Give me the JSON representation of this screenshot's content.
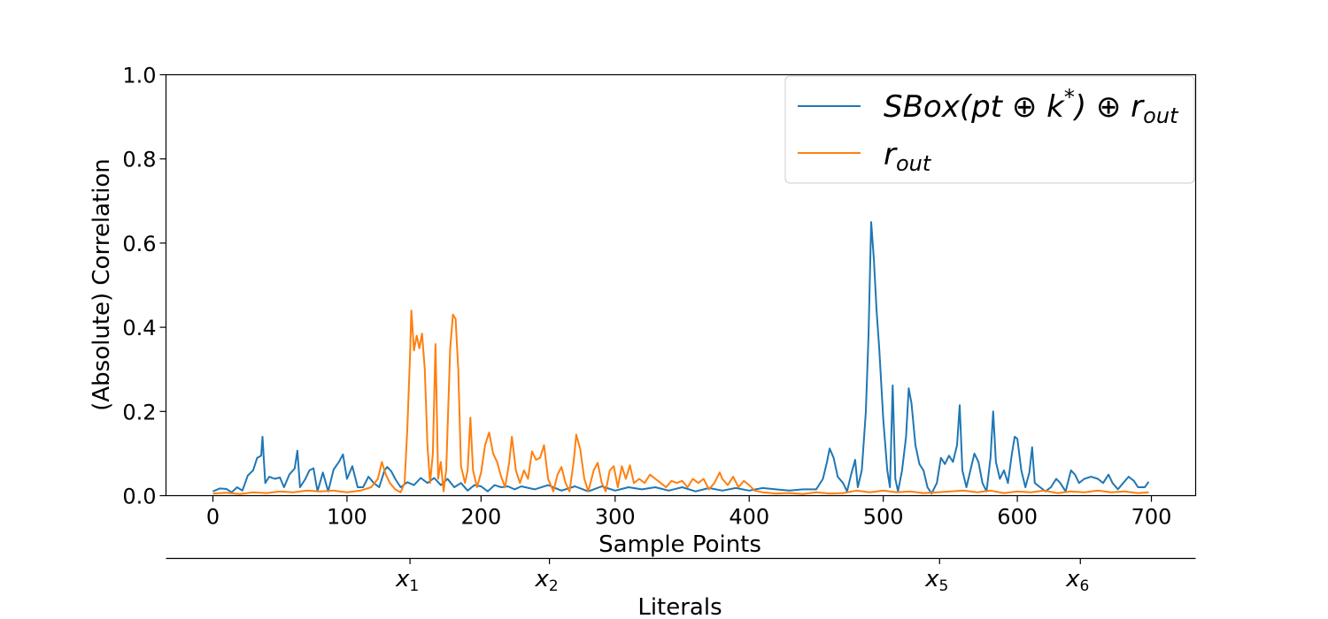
{
  "chart_data": {
    "type": "line",
    "xlabel": "Sample Points",
    "ylabel": "(Absolute) Correlation",
    "xlim": [
      -35,
      733
    ],
    "ylim": [
      0.0,
      1.0
    ],
    "xticks": [
      0,
      100,
      200,
      300,
      400,
      500,
      600,
      700
    ],
    "yticks": [
      0.0,
      0.2,
      0.4,
      0.6,
      0.8,
      1.0
    ],
    "ytick_labels": [
      "0.0",
      "0.2",
      "0.4",
      "0.6",
      "0.8",
      "1.0"
    ],
    "legend_position": "top-right",
    "secondary_axis": {
      "label": "Literals",
      "ticks": [
        {
          "at": 147,
          "base": "x",
          "sub": "1"
        },
        {
          "at": 251,
          "base": "x",
          "sub": "2"
        },
        {
          "at": 542,
          "base": "x",
          "sub": "5"
        },
        {
          "at": 647,
          "base": "x",
          "sub": "6"
        }
      ]
    },
    "series": [
      {
        "name": "SBox(pt ⊕ k*) ⊕ r_out",
        "legend_main": "SBox(pt ⊕ k",
        "legend_sup": "*",
        "legend_mid": ") ⊕ r",
        "legend_sub": "out",
        "color": "#1f77b4",
        "points": [
          [
            0,
            0.01
          ],
          [
            5,
            0.017
          ],
          [
            10,
            0.016
          ],
          [
            14,
            0.008
          ],
          [
            18,
            0.02
          ],
          [
            22,
            0.012
          ],
          [
            26,
            0.048
          ],
          [
            30,
            0.06
          ],
          [
            33,
            0.09
          ],
          [
            36,
            0.095
          ],
          [
            37,
            0.14
          ],
          [
            39,
            0.03
          ],
          [
            42,
            0.045
          ],
          [
            46,
            0.04
          ],
          [
            50,
            0.043
          ],
          [
            53,
            0.02
          ],
          [
            57,
            0.05
          ],
          [
            61,
            0.065
          ],
          [
            63,
            0.107
          ],
          [
            65,
            0.02
          ],
          [
            69,
            0.04
          ],
          [
            72,
            0.06
          ],
          [
            75,
            0.065
          ],
          [
            78,
            0.01
          ],
          [
            82,
            0.055
          ],
          [
            86,
            0.01
          ],
          [
            90,
            0.062
          ],
          [
            94,
            0.08
          ],
          [
            97,
            0.098
          ],
          [
            100,
            0.04
          ],
          [
            104,
            0.07
          ],
          [
            108,
            0.02
          ],
          [
            112,
            0.02
          ],
          [
            116,
            0.045
          ],
          [
            120,
            0.03
          ],
          [
            124,
            0.02
          ],
          [
            128,
            0.06
          ],
          [
            130,
            0.068
          ],
          [
            133,
            0.058
          ],
          [
            136,
            0.04
          ],
          [
            140,
            0.02
          ],
          [
            145,
            0.032
          ],
          [
            150,
            0.025
          ],
          [
            155,
            0.042
          ],
          [
            160,
            0.03
          ],
          [
            165,
            0.042
          ],
          [
            170,
            0.025
          ],
          [
            175,
            0.04
          ],
          [
            180,
            0.02
          ],
          [
            185,
            0.03
          ],
          [
            190,
            0.012
          ],
          [
            195,
            0.025
          ],
          [
            200,
            0.022
          ],
          [
            205,
            0.01
          ],
          [
            210,
            0.025
          ],
          [
            215,
            0.02
          ],
          [
            220,
            0.022
          ],
          [
            225,
            0.015
          ],
          [
            230,
            0.022
          ],
          [
            240,
            0.015
          ],
          [
            250,
            0.025
          ],
          [
            260,
            0.012
          ],
          [
            270,
            0.022
          ],
          [
            280,
            0.01
          ],
          [
            290,
            0.022
          ],
          [
            300,
            0.012
          ],
          [
            310,
            0.02
          ],
          [
            320,
            0.015
          ],
          [
            330,
            0.02
          ],
          [
            340,
            0.012
          ],
          [
            350,
            0.02
          ],
          [
            360,
            0.01
          ],
          [
            370,
            0.018
          ],
          [
            380,
            0.012
          ],
          [
            390,
            0.018
          ],
          [
            400,
            0.012
          ],
          [
            410,
            0.018
          ],
          [
            420,
            0.015
          ],
          [
            430,
            0.012
          ],
          [
            440,
            0.015
          ],
          [
            450,
            0.015
          ],
          [
            455,
            0.04
          ],
          [
            458,
            0.08
          ],
          [
            460,
            0.112
          ],
          [
            463,
            0.09
          ],
          [
            466,
            0.045
          ],
          [
            470,
            0.03
          ],
          [
            473,
            0.01
          ],
          [
            476,
            0.05
          ],
          [
            479,
            0.085
          ],
          [
            481,
            0.02
          ],
          [
            484,
            0.06
          ],
          [
            487,
            0.2
          ],
          [
            489,
            0.38
          ],
          [
            491,
            0.65
          ],
          [
            493,
            0.56
          ],
          [
            495,
            0.44
          ],
          [
            497,
            0.35
          ],
          [
            500,
            0.18
          ],
          [
            503,
            0.06
          ],
          [
            505,
            0.02
          ],
          [
            507,
            0.262
          ],
          [
            509,
            0.04
          ],
          [
            511,
            0.01
          ],
          [
            514,
            0.06
          ],
          [
            517,
            0.14
          ],
          [
            519,
            0.255
          ],
          [
            521,
            0.22
          ],
          [
            524,
            0.12
          ],
          [
            527,
            0.075
          ],
          [
            530,
            0.06
          ],
          [
            533,
            0.02
          ],
          [
            536,
            0.005
          ],
          [
            540,
            0.03
          ],
          [
            543,
            0.09
          ],
          [
            546,
            0.075
          ],
          [
            549,
            0.095
          ],
          [
            552,
            0.08
          ],
          [
            555,
            0.12
          ],
          [
            557,
            0.215
          ],
          [
            559,
            0.06
          ],
          [
            562,
            0.02
          ],
          [
            565,
            0.06
          ],
          [
            568,
            0.1
          ],
          [
            571,
            0.08
          ],
          [
            574,
            0.03
          ],
          [
            577,
            0.01
          ],
          [
            580,
            0.09
          ],
          [
            582,
            0.2
          ],
          [
            584,
            0.08
          ],
          [
            587,
            0.04
          ],
          [
            590,
            0.06
          ],
          [
            593,
            0.03
          ],
          [
            596,
            0.1
          ],
          [
            598,
            0.14
          ],
          [
            600,
            0.135
          ],
          [
            603,
            0.06
          ],
          [
            606,
            0.02
          ],
          [
            609,
            0.055
          ],
          [
            611,
            0.115
          ],
          [
            613,
            0.03
          ],
          [
            617,
            0.02
          ],
          [
            621,
            0.01
          ],
          [
            625,
            0.02
          ],
          [
            629,
            0.04
          ],
          [
            632,
            0.03
          ],
          [
            636,
            0.01
          ],
          [
            640,
            0.06
          ],
          [
            643,
            0.05
          ],
          [
            646,
            0.03
          ],
          [
            650,
            0.04
          ],
          [
            655,
            0.045
          ],
          [
            660,
            0.04
          ],
          [
            664,
            0.03
          ],
          [
            668,
            0.05
          ],
          [
            671,
            0.03
          ],
          [
            675,
            0.015
          ],
          [
            679,
            0.03
          ],
          [
            683,
            0.045
          ],
          [
            687,
            0.035
          ],
          [
            690,
            0.02
          ],
          [
            695,
            0.02
          ],
          [
            698,
            0.033
          ]
        ]
      },
      {
        "name": "r_out",
        "legend_main": "r",
        "legend_sup": "",
        "legend_mid": "",
        "legend_sub": "out",
        "color": "#ff7f0e",
        "points": [
          [
            0,
            0.005
          ],
          [
            10,
            0.007
          ],
          [
            20,
            0.004
          ],
          [
            30,
            0.008
          ],
          [
            40,
            0.006
          ],
          [
            50,
            0.01
          ],
          [
            60,
            0.008
          ],
          [
            70,
            0.012
          ],
          [
            80,
            0.01
          ],
          [
            90,
            0.012
          ],
          [
            100,
            0.008
          ],
          [
            110,
            0.012
          ],
          [
            118,
            0.02
          ],
          [
            123,
            0.04
          ],
          [
            126,
            0.08
          ],
          [
            129,
            0.05
          ],
          [
            132,
            0.03
          ],
          [
            136,
            0.015
          ],
          [
            140,
            0.008
          ],
          [
            143,
            0.03
          ],
          [
            145,
            0.16
          ],
          [
            147,
            0.33
          ],
          [
            148,
            0.44
          ],
          [
            150,
            0.345
          ],
          [
            152,
            0.38
          ],
          [
            154,
            0.35
          ],
          [
            156,
            0.385
          ],
          [
            158,
            0.3
          ],
          [
            160,
            0.12
          ],
          [
            162,
            0.03
          ],
          [
            164,
            0.1
          ],
          [
            166,
            0.36
          ],
          [
            168,
            0.04
          ],
          [
            170,
            0.08
          ],
          [
            172,
            0.01
          ],
          [
            174,
            0.06
          ],
          [
            177,
            0.35
          ],
          [
            179,
            0.43
          ],
          [
            181,
            0.42
          ],
          [
            183,
            0.3
          ],
          [
            185,
            0.07
          ],
          [
            188,
            0.03
          ],
          [
            190,
            0.06
          ],
          [
            192,
            0.185
          ],
          [
            194,
            0.06
          ],
          [
            197,
            0.02
          ],
          [
            200,
            0.055
          ],
          [
            203,
            0.12
          ],
          [
            206,
            0.15
          ],
          [
            209,
            0.1
          ],
          [
            212,
            0.08
          ],
          [
            215,
            0.045
          ],
          [
            218,
            0.02
          ],
          [
            221,
            0.08
          ],
          [
            223,
            0.14
          ],
          [
            226,
            0.06
          ],
          [
            229,
            0.03
          ],
          [
            232,
            0.06
          ],
          [
            235,
            0.04
          ],
          [
            238,
            0.105
          ],
          [
            241,
            0.085
          ],
          [
            244,
            0.09
          ],
          [
            247,
            0.12
          ],
          [
            250,
            0.04
          ],
          [
            254,
            0.01
          ],
          [
            257,
            0.05
          ],
          [
            260,
            0.068
          ],
          [
            263,
            0.03
          ],
          [
            266,
            0.01
          ],
          [
            269,
            0.08
          ],
          [
            271,
            0.145
          ],
          [
            274,
            0.11
          ],
          [
            277,
            0.04
          ],
          [
            280,
            0.01
          ],
          [
            284,
            0.06
          ],
          [
            287,
            0.078
          ],
          [
            290,
            0.03
          ],
          [
            293,
            0.01
          ],
          [
            296,
            0.06
          ],
          [
            299,
            0.07
          ],
          [
            302,
            0.02
          ],
          [
            305,
            0.07
          ],
          [
            308,
            0.04
          ],
          [
            311,
            0.072
          ],
          [
            314,
            0.03
          ],
          [
            318,
            0.04
          ],
          [
            322,
            0.03
          ],
          [
            326,
            0.05
          ],
          [
            330,
            0.04
          ],
          [
            334,
            0.03
          ],
          [
            338,
            0.02
          ],
          [
            342,
            0.035
          ],
          [
            346,
            0.03
          ],
          [
            350,
            0.035
          ],
          [
            354,
            0.02
          ],
          [
            358,
            0.04
          ],
          [
            362,
            0.03
          ],
          [
            366,
            0.04
          ],
          [
            370,
            0.015
          ],
          [
            374,
            0.03
          ],
          [
            378,
            0.055
          ],
          [
            380,
            0.04
          ],
          [
            384,
            0.025
          ],
          [
            388,
            0.045
          ],
          [
            392,
            0.02
          ],
          [
            396,
            0.035
          ],
          [
            400,
            0.025
          ],
          [
            404,
            0.012
          ],
          [
            410,
            0.008
          ],
          [
            420,
            0.005
          ],
          [
            430,
            0.006
          ],
          [
            440,
            0.004
          ],
          [
            450,
            0.008
          ],
          [
            460,
            0.005
          ],
          [
            470,
            0.006
          ],
          [
            480,
            0.012
          ],
          [
            490,
            0.008
          ],
          [
            500,
            0.012
          ],
          [
            510,
            0.008
          ],
          [
            520,
            0.01
          ],
          [
            530,
            0.006
          ],
          [
            540,
            0.008
          ],
          [
            550,
            0.01
          ],
          [
            560,
            0.012
          ],
          [
            570,
            0.008
          ],
          [
            580,
            0.012
          ],
          [
            590,
            0.006
          ],
          [
            600,
            0.01
          ],
          [
            610,
            0.008
          ],
          [
            620,
            0.012
          ],
          [
            630,
            0.006
          ],
          [
            640,
            0.01
          ],
          [
            650,
            0.008
          ],
          [
            660,
            0.012
          ],
          [
            670,
            0.008
          ],
          [
            680,
            0.01
          ],
          [
            690,
            0.006
          ],
          [
            698,
            0.008
          ]
        ]
      }
    ]
  }
}
